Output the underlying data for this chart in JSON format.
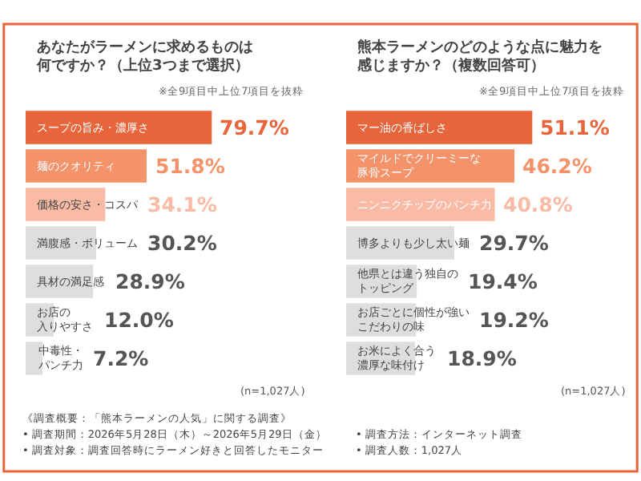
{
  "chart_data": [
    {
      "type": "bar",
      "orientation": "horizontal",
      "title": "あなたがラーメンに求めるものは何ですか？（上位3つまで選択）",
      "subtitle": "※全9項目中上位7項目を抜粋",
      "categories": [
        "スープの旨み・濃厚さ",
        "麺のクオリティ",
        "価格の安さ・コスパ",
        "満腹感・ボリューム",
        "具材の満足感",
        "お店の入りやすさ",
        "中毒性・パンチ力"
      ],
      "values": [
        79.7,
        51.8,
        34.1,
        30.2,
        28.9,
        12.0,
        7.2
      ],
      "value_labels": [
        "79.7%",
        "51.8%",
        "34.1%",
        "30.2%",
        "28.9%",
        "12.0%",
        "7.2%"
      ],
      "colors": [
        "#e8643a",
        "#f4926a",
        "#f9bba5",
        "#dedede",
        "#dedede",
        "#dedede",
        "#dedede"
      ],
      "annotations": [
        "(n=1,027人)",
        "《調査概要：「熊本ラーメンの人気」に関する調査》",
        "• 調査期間：2026年5月28日（木）～2026年5月29日（金）",
        "• 調査方法：インターネット調査",
        "• 調査対象：調査回答時にラーメン好きと回答したモニター",
        "• 調査人数：1,027人"
      ]
    },
    {
      "type": "bar",
      "orientation": "horizontal",
      "title": "熊本ラーメンのどのような点に魅力を感じますか？（複数回答可）",
      "subtitle": "※全9項目中上位7項目を抜粋",
      "categories": [
        "マー油の香ばしさ",
        "マイルドでクリーミーな豚骨スープ",
        "ニンニクチップのパンチ力",
        "博多よりも少し太い麺",
        "他県とは違う独自のトッピング",
        "お店ごとに個性が強いこだわりの味",
        "お米によく合う濃厚な味付け"
      ],
      "values": [
        51.1,
        46.2,
        40.8,
        29.7,
        19.4,
        19.2,
        18.9
      ],
      "value_labels": [
        "51.1%",
        "46.2%",
        "40.8%",
        "29.7%",
        "19.4%",
        "19.2%",
        "18.9%"
      ],
      "colors": [
        "#e8643a",
        "#f4926a",
        "#f9bba5",
        "#dedede",
        "#dedede",
        "#dedede",
        "#dedede"
      ],
      "annotations": [
        "(n=1,027人)"
      ]
    }
  ]
}
